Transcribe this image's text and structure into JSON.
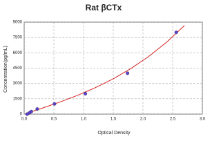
{
  "chart_data": {
    "type": "scatter",
    "title": "Rat βCTx",
    "x_label": "Optical Density",
    "y_label": "Concentration(pg/mL)",
    "xlim": [
      0,
      3
    ],
    "xticks": [
      {
        "value": 0,
        "label": "0.0"
      },
      0.5,
      {
        "value": 1,
        "label": "1.0"
      },
      1.5,
      {
        "value": 2,
        "label": "2.0"
      },
      2.5,
      {
        "value": 3,
        "label": "3.0"
      }
    ],
    "ylim": [
      0,
      9000
    ],
    "yticks": [
      0,
      1500,
      3000,
      4500,
      6000,
      7500,
      9000
    ],
    "grid": true,
    "series": [
      {
        "type": "line",
        "color": "#d42020",
        "x": [
          0.02,
          0.3,
          0.6,
          0.9,
          1.2,
          1.5,
          1.8,
          2.1,
          2.4,
          2.7
        ],
        "values": [
          38,
          575,
          1179,
          1841,
          2591,
          3458,
          4470,
          5657,
          7048,
          8673
        ]
      },
      {
        "type": "scatter",
        "color": "#5b3fd6",
        "x": [
          0.05,
          0.09,
          0.12,
          0.22,
          0.51,
          1.03,
          1.74,
          2.56
        ],
        "values": [
          0,
          125,
          250,
          500,
          1000,
          2000,
          4000,
          8000
        ]
      }
    ]
  }
}
